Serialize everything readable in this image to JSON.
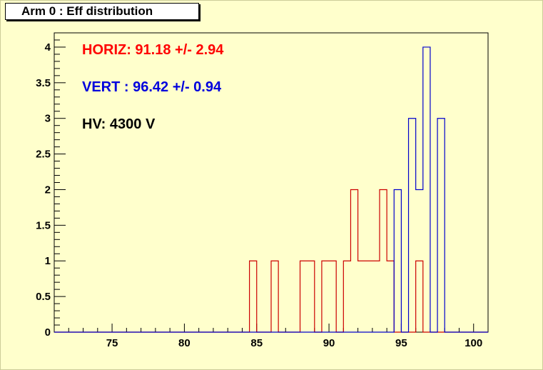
{
  "title": "Arm 0 : Eff distribution",
  "colors": {
    "background": "#ffffcc",
    "horiz": "#cc0000",
    "vert": "#0000cc",
    "text_black": "#000000",
    "horiz_text": "#ff0000",
    "vert_text": "#0000dd"
  },
  "annotations": {
    "horiz": "HORIZ: 91.18 +/- 2.94",
    "vert": "VERT : 96.42 +/- 0.94",
    "hv": "HV: 4300 V"
  },
  "chart_data": {
    "type": "histogram",
    "title": "Arm 0 : Eff distribution",
    "xlabel": "",
    "ylabel": "",
    "xlim": [
      71,
      101
    ],
    "ylim": [
      0,
      4.2
    ],
    "x_ticks": [
      75,
      80,
      85,
      90,
      95,
      100
    ],
    "y_ticks": [
      0,
      0.5,
      1,
      1.5,
      2,
      2.5,
      3,
      3.5,
      4
    ],
    "bin_width": 0.5,
    "grid": false,
    "series": [
      {
        "name": "HORIZ",
        "color": "#cc0000",
        "bins": [
          {
            "x": 84.5,
            "y": 1
          },
          {
            "x": 86.0,
            "y": 1
          },
          {
            "x": 88.0,
            "y": 1
          },
          {
            "x": 88.5,
            "y": 1
          },
          {
            "x": 89.5,
            "y": 1
          },
          {
            "x": 90.0,
            "y": 1
          },
          {
            "x": 91.0,
            "y": 1
          },
          {
            "x": 91.5,
            "y": 2
          },
          {
            "x": 92.0,
            "y": 1
          },
          {
            "x": 92.5,
            "y": 1
          },
          {
            "x": 93.0,
            "y": 1
          },
          {
            "x": 93.5,
            "y": 2
          },
          {
            "x": 94.0,
            "y": 1
          },
          {
            "x": 96.0,
            "y": 1
          }
        ]
      },
      {
        "name": "VERT",
        "color": "#0000cc",
        "bins": [
          {
            "x": 94.5,
            "y": 2
          },
          {
            "x": 95.5,
            "y": 3
          },
          {
            "x": 96.0,
            "y": 2
          },
          {
            "x": 96.5,
            "y": 4
          },
          {
            "x": 97.5,
            "y": 3
          }
        ]
      }
    ]
  }
}
